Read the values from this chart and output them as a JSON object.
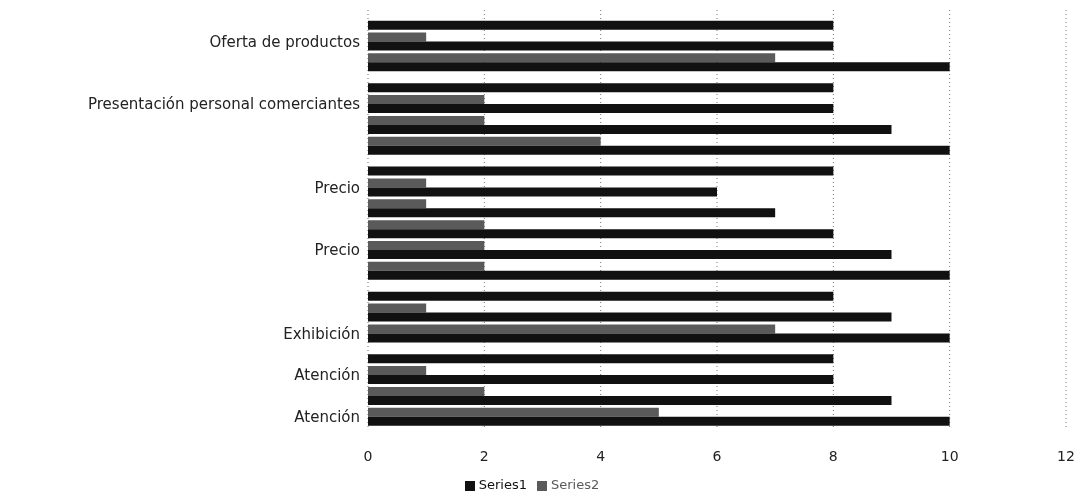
{
  "chart_data": {
    "type": "bar",
    "orientation": "horizontal",
    "categories": [
      null,
      "Oferta de productos",
      null,
      null,
      "Presentación personal comerciantes",
      null,
      null,
      null,
      "Precio",
      null,
      null,
      "Precio",
      null,
      null,
      null,
      "Exhibición",
      null,
      "Atención",
      null,
      "Atención"
    ],
    "series": [
      {
        "name": "Series2",
        "color": "#5a5a5a",
        "values": [
          0,
          1,
          7,
          0,
          2,
          2,
          4,
          0,
          1,
          1,
          2,
          2,
          2,
          0,
          1,
          7,
          0,
          1,
          2,
          5
        ]
      },
      {
        "name": "Series1",
        "color": "#111111",
        "values": [
          8,
          8,
          10,
          8,
          8,
          9,
          10,
          8,
          6,
          7,
          8,
          9,
          10,
          8,
          9,
          10,
          8,
          8,
          9,
          10
        ]
      }
    ],
    "xlim": [
      0,
      12
    ],
    "xticks": [
      0,
      2,
      4,
      6,
      8,
      10,
      12
    ],
    "grid": "x",
    "legend": "bottom"
  }
}
